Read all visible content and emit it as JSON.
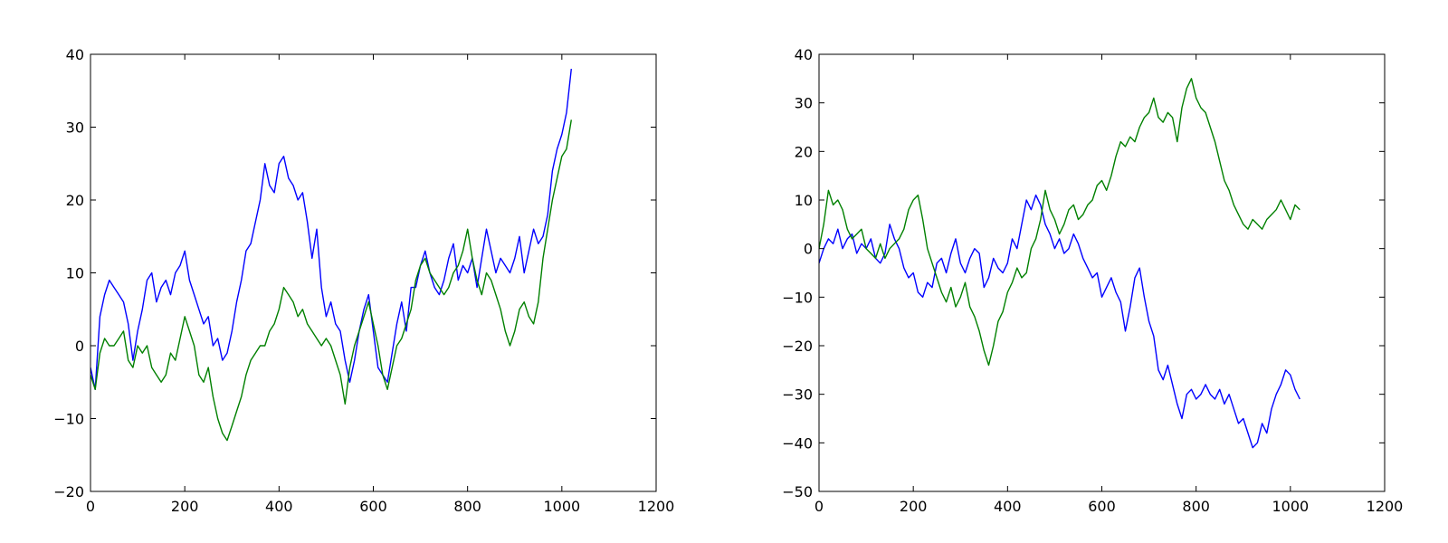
{
  "colors": {
    "blue": "#0000ff",
    "green": "#008000"
  },
  "chart_data": [
    {
      "type": "line",
      "title": "",
      "xlabel": "",
      "ylabel": "",
      "xlim": [
        0,
        1200
      ],
      "ylim": [
        -20,
        40
      ],
      "xticks": [
        0,
        200,
        400,
        600,
        800,
        1000,
        1200
      ],
      "yticks": [
        -20,
        -10,
        0,
        10,
        20,
        30,
        40
      ],
      "xtick_labels": [
        "0",
        "200",
        "400",
        "600",
        "800",
        "1000",
        "1200"
      ],
      "ytick_labels": [
        "−20",
        "−10",
        "0",
        "10",
        "20",
        "30",
        "40"
      ],
      "grid": false,
      "series": [
        {
          "color": "#0000ff",
          "x": [
            0,
            10,
            20,
            30,
            40,
            50,
            60,
            70,
            80,
            90,
            100,
            110,
            120,
            130,
            140,
            150,
            160,
            170,
            180,
            190,
            200,
            210,
            220,
            230,
            240,
            250,
            260,
            270,
            280,
            290,
            300,
            310,
            320,
            330,
            340,
            350,
            360,
            370,
            380,
            390,
            400,
            410,
            420,
            430,
            440,
            450,
            460,
            470,
            480,
            490,
            500,
            510,
            520,
            530,
            540,
            550,
            560,
            570,
            580,
            590,
            600,
            610,
            620,
            630,
            640,
            650,
            660,
            670,
            680,
            690,
            700,
            710,
            720,
            730,
            740,
            750,
            760,
            770,
            780,
            790,
            800,
            810,
            820,
            830,
            840,
            850,
            860,
            870,
            880,
            890,
            900,
            910,
            920,
            930,
            940,
            950,
            960,
            970,
            980,
            990,
            1000,
            1010,
            1020
          ],
          "y": [
            -3,
            -6,
            4,
            7,
            9,
            8,
            7,
            6,
            3,
            -2,
            2,
            5,
            9,
            10,
            6,
            8,
            9,
            7,
            10,
            11,
            13,
            9,
            7,
            5,
            3,
            4,
            0,
            1,
            -2,
            -1,
            2,
            6,
            9,
            13,
            14,
            17,
            20,
            25,
            22,
            21,
            25,
            26,
            23,
            22,
            20,
            21,
            17,
            12,
            16,
            8,
            4,
            6,
            3,
            2,
            -2,
            -5,
            -2,
            2,
            5,
            7,
            2,
            -3,
            -4,
            -5,
            -1,
            3,
            6,
            2,
            8,
            8,
            11,
            13,
            10,
            8,
            7,
            9,
            12,
            14,
            9,
            11,
            10,
            12,
            8,
            12,
            16,
            13,
            10,
            12,
            11,
            10,
            12,
            15,
            10,
            13,
            16,
            14,
            15,
            18,
            24,
            27,
            29,
            32,
            38
          ]
        },
        {
          "color": "#008000",
          "x": [
            0,
            10,
            20,
            30,
            40,
            50,
            60,
            70,
            80,
            90,
            100,
            110,
            120,
            130,
            140,
            150,
            160,
            170,
            180,
            190,
            200,
            210,
            220,
            230,
            240,
            250,
            260,
            270,
            280,
            290,
            300,
            310,
            320,
            330,
            340,
            350,
            360,
            370,
            380,
            390,
            400,
            410,
            420,
            430,
            440,
            450,
            460,
            470,
            480,
            490,
            500,
            510,
            520,
            530,
            540,
            550,
            560,
            570,
            580,
            590,
            600,
            610,
            620,
            630,
            640,
            650,
            660,
            670,
            680,
            690,
            700,
            710,
            720,
            730,
            740,
            750,
            760,
            770,
            780,
            790,
            800,
            810,
            820,
            830,
            840,
            850,
            860,
            870,
            880,
            890,
            900,
            910,
            920,
            930,
            940,
            950,
            960,
            970,
            980,
            990,
            1000,
            1010,
            1020
          ],
          "y": [
            -4,
            -6,
            -1,
            1,
            0,
            0,
            1,
            2,
            -2,
            -3,
            0,
            -1,
            0,
            -3,
            -4,
            -5,
            -4,
            -1,
            -2,
            1,
            4,
            2,
            0,
            -4,
            -5,
            -3,
            -7,
            -10,
            -12,
            -13,
            -11,
            -9,
            -7,
            -4,
            -2,
            -1,
            0,
            0,
            2,
            3,
            5,
            8,
            7,
            6,
            4,
            5,
            3,
            2,
            1,
            0,
            1,
            0,
            -2,
            -4,
            -8,
            -3,
            0,
            2,
            4,
            6,
            3,
            0,
            -4,
            -6,
            -3,
            0,
            1,
            3,
            5,
            9,
            11,
            12,
            10,
            9,
            8,
            7,
            8,
            10,
            11,
            13,
            16,
            12,
            9,
            7,
            10,
            9,
            7,
            5,
            2,
            0,
            2,
            5,
            6,
            4,
            3,
            6,
            12,
            16,
            20,
            23,
            26,
            27,
            31
          ]
        }
      ]
    },
    {
      "type": "line",
      "title": "",
      "xlabel": "",
      "ylabel": "",
      "xlim": [
        0,
        1200
      ],
      "ylim": [
        -50,
        40
      ],
      "xticks": [
        0,
        200,
        400,
        600,
        800,
        1000,
        1200
      ],
      "yticks": [
        -50,
        -40,
        -30,
        -20,
        -10,
        0,
        10,
        20,
        30,
        40
      ],
      "xtick_labels": [
        "0",
        "200",
        "400",
        "600",
        "800",
        "1000",
        "1200"
      ],
      "ytick_labels": [
        "−50",
        "−40",
        "−30",
        "−20",
        "−10",
        "0",
        "10",
        "20",
        "30",
        "40"
      ],
      "grid": false,
      "series": [
        {
          "color": "#0000ff",
          "x": [
            0,
            10,
            20,
            30,
            40,
            50,
            60,
            70,
            80,
            90,
            100,
            110,
            120,
            130,
            140,
            150,
            160,
            170,
            180,
            190,
            200,
            210,
            220,
            230,
            240,
            250,
            260,
            270,
            280,
            290,
            300,
            310,
            320,
            330,
            340,
            350,
            360,
            370,
            380,
            390,
            400,
            410,
            420,
            430,
            440,
            450,
            460,
            470,
            480,
            490,
            500,
            510,
            520,
            530,
            540,
            550,
            560,
            570,
            580,
            590,
            600,
            610,
            620,
            630,
            640,
            650,
            660,
            670,
            680,
            690,
            700,
            710,
            720,
            730,
            740,
            750,
            760,
            770,
            780,
            790,
            800,
            810,
            820,
            830,
            840,
            850,
            860,
            870,
            880,
            890,
            900,
            910,
            920,
            930,
            940,
            950,
            960,
            970,
            980,
            990,
            1000,
            1010,
            1020
          ],
          "y": [
            -3,
            0,
            2,
            1,
            4,
            0,
            2,
            3,
            -1,
            1,
            0,
            2,
            -2,
            -3,
            -1,
            5,
            2,
            0,
            -4,
            -6,
            -5,
            -9,
            -10,
            -7,
            -8,
            -3,
            -2,
            -5,
            -1,
            2,
            -3,
            -5,
            -2,
            0,
            -1,
            -8,
            -6,
            -2,
            -4,
            -5,
            -3,
            2,
            0,
            5,
            10,
            8,
            11,
            9,
            5,
            3,
            0,
            2,
            -1,
            0,
            3,
            1,
            -2,
            -4,
            -6,
            -5,
            -10,
            -8,
            -6,
            -9,
            -11,
            -17,
            -12,
            -6,
            -4,
            -10,
            -15,
            -18,
            -25,
            -27,
            -24,
            -28,
            -32,
            -35,
            -30,
            -29,
            -31,
            -30,
            -28,
            -30,
            -31,
            -29,
            -32,
            -30,
            -33,
            -36,
            -35,
            -38,
            -41,
            -40,
            -36,
            -38,
            -33,
            -30,
            -28,
            -25,
            -26,
            -29,
            -31
          ]
        },
        {
          "color": "#008000",
          "x": [
            0,
            10,
            20,
            30,
            40,
            50,
            60,
            70,
            80,
            90,
            100,
            110,
            120,
            130,
            140,
            150,
            160,
            170,
            180,
            190,
            200,
            210,
            220,
            230,
            240,
            250,
            260,
            270,
            280,
            290,
            300,
            310,
            320,
            330,
            340,
            350,
            360,
            370,
            380,
            390,
            400,
            410,
            420,
            430,
            440,
            450,
            460,
            470,
            480,
            490,
            500,
            510,
            520,
            530,
            540,
            550,
            560,
            570,
            580,
            590,
            600,
            610,
            620,
            630,
            640,
            650,
            660,
            670,
            680,
            690,
            700,
            710,
            720,
            730,
            740,
            750,
            760,
            770,
            780,
            790,
            800,
            810,
            820,
            830,
            840,
            850,
            860,
            870,
            880,
            890,
            900,
            910,
            920,
            930,
            940,
            950,
            960,
            970,
            980,
            990,
            1000,
            1010,
            1020
          ],
          "y": [
            0,
            5,
            12,
            9,
            10,
            8,
            4,
            2,
            3,
            4,
            0,
            -1,
            -2,
            1,
            -2,
            0,
            1,
            2,
            4,
            8,
            10,
            11,
            6,
            0,
            -3,
            -6,
            -9,
            -11,
            -8,
            -12,
            -10,
            -7,
            -12,
            -14,
            -17,
            -21,
            -24,
            -20,
            -15,
            -13,
            -9,
            -7,
            -4,
            -6,
            -5,
            0,
            2,
            6,
            12,
            8,
            6,
            3,
            5,
            8,
            9,
            6,
            7,
            9,
            10,
            13,
            14,
            12,
            15,
            19,
            22,
            21,
            23,
            22,
            25,
            27,
            28,
            31,
            27,
            26,
            28,
            27,
            22,
            29,
            33,
            35,
            31,
            29,
            28,
            25,
            22,
            18,
            14,
            12,
            9,
            7,
            5,
            4,
            6,
            5,
            4,
            6,
            7,
            8,
            10,
            8,
            6,
            9,
            8
          ]
        }
      ]
    }
  ]
}
